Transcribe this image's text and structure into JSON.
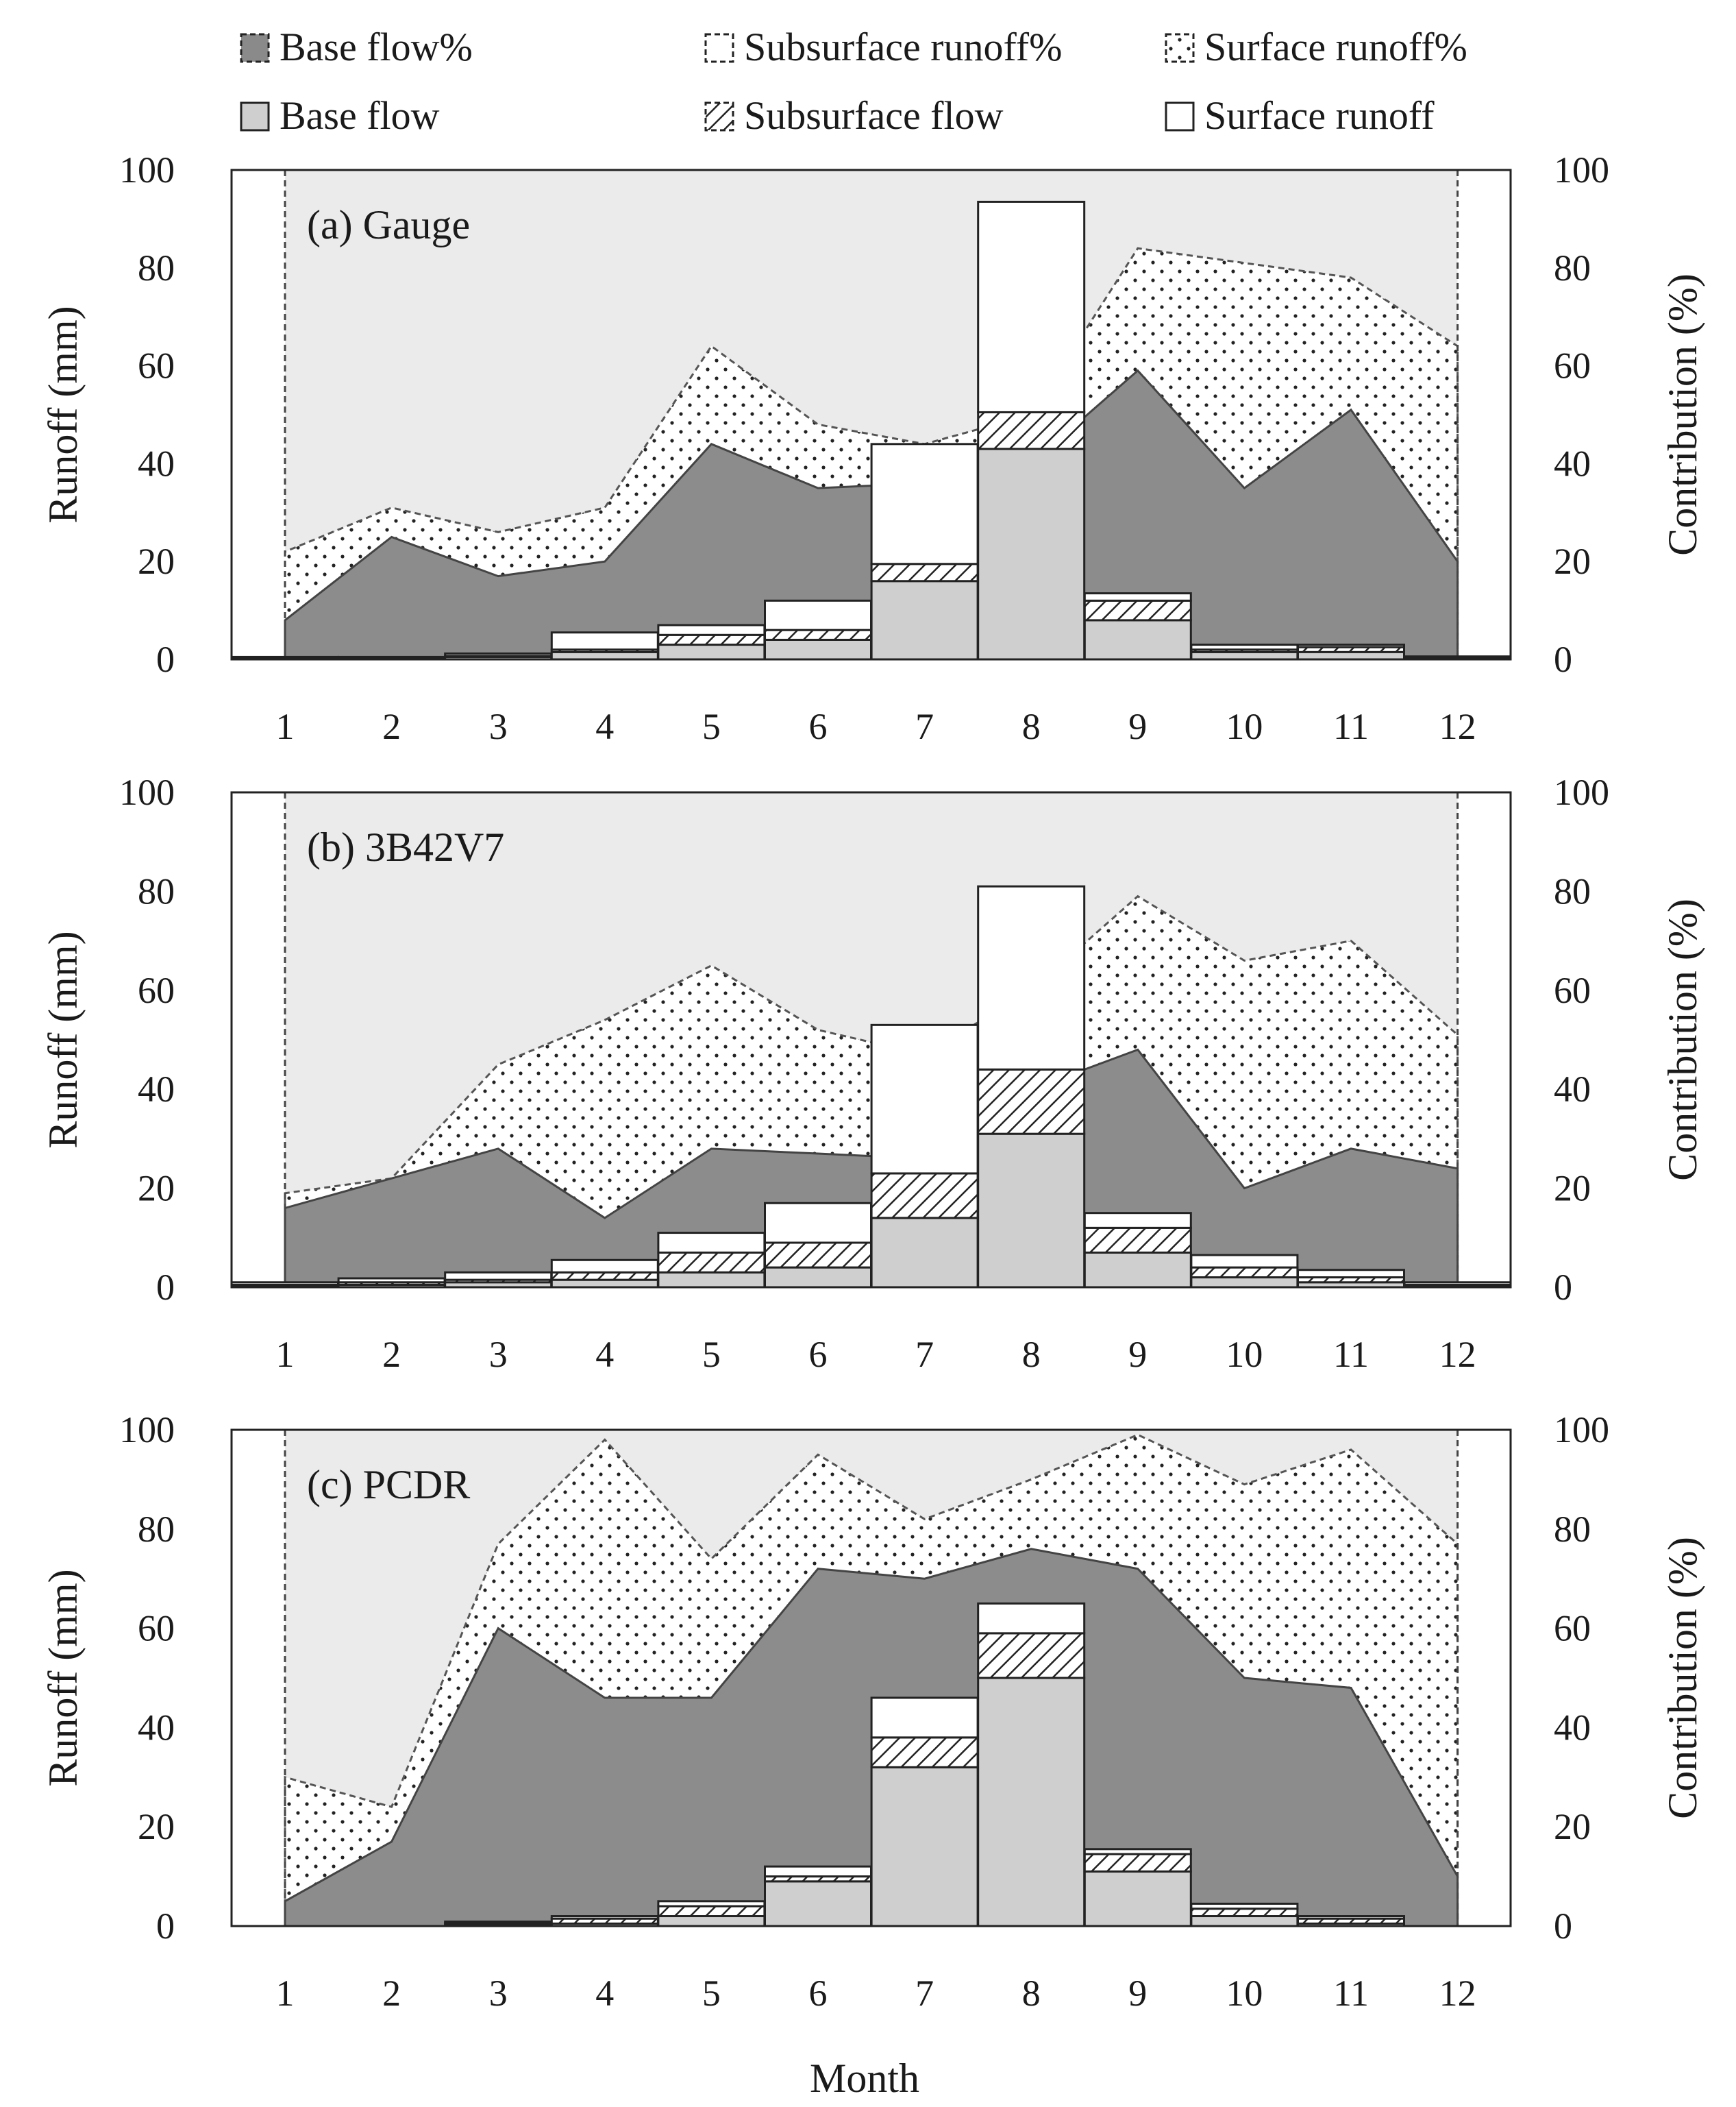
{
  "chart_data": {
    "type": "bar",
    "description_kind": "stacked bars (runoff components, left axis) with stacked area contribution percentages (right axis), three panels",
    "xlabel": "Month",
    "ylabel_left": "Runoff (mm)",
    "ylabel_right": "Contribution (%)",
    "categories": [
      "1",
      "2",
      "3",
      "4",
      "5",
      "6",
      "7",
      "8",
      "9",
      "10",
      "11",
      "12"
    ],
    "y_ticks": [
      "0",
      "20",
      "40",
      "60",
      "80",
      "100"
    ],
    "ylim": [
      0,
      100
    ],
    "y2lim": [
      0,
      100
    ],
    "legend": [
      {
        "key": "bf_pct",
        "label": "Base flow%"
      },
      {
        "key": "ssr_pct",
        "label": "Subsurface runoff%"
      },
      {
        "key": "sr_pct",
        "label": "Surface runoff%"
      },
      {
        "key": "bf",
        "label": "Base flow"
      },
      {
        "key": "ssf",
        "label": "Subsurface flow"
      },
      {
        "key": "sr",
        "label": "Surface runoff"
      }
    ],
    "panels": [
      {
        "title": "(a) Gauge",
        "base_flow": [
          0.2,
          0.3,
          0.5,
          1.5,
          3,
          4,
          16,
          43,
          8,
          1.5,
          1.5,
          0.3
        ],
        "subsurface_flow": [
          0.1,
          0.1,
          0.2,
          0.5,
          2,
          2,
          3.5,
          7.5,
          4,
          0.5,
          1,
          0.1
        ],
        "surface_runoff": [
          0.2,
          0.1,
          0.5,
          3.5,
          2,
          6,
          24.5,
          43,
          1.5,
          1.0,
          0.5,
          0.2
        ],
        "base_flow_pct": [
          8,
          25,
          17,
          20,
          44,
          35,
          36,
          40,
          59,
          35,
          51,
          20
        ],
        "cumulative_pct": [
          22,
          31,
          26,
          31,
          64,
          48,
          44,
          50,
          84,
          81,
          78,
          64
        ]
      },
      {
        "title": "(b) 3B42V7",
        "base_flow": [
          0.3,
          0.5,
          1,
          1.5,
          3,
          4,
          14,
          31,
          7,
          2,
          1,
          0.3
        ],
        "subsurface_flow": [
          0.2,
          0.5,
          0.5,
          1.5,
          4,
          5,
          9,
          13,
          5,
          2,
          1,
          0.2
        ],
        "surface_runoff": [
          0.5,
          0.8,
          1.5,
          2.5,
          4,
          8,
          30,
          37,
          3,
          2.5,
          1.5,
          0.5
        ],
        "base_flow_pct": [
          16,
          22,
          28,
          14,
          28,
          27,
          26,
          40,
          48,
          20,
          28,
          24
        ],
        "cumulative_pct": [
          19,
          22,
          45,
          54,
          65,
          52,
          47,
          60,
          79,
          66,
          70,
          51
        ]
      },
      {
        "title": "(c) PCDR",
        "base_flow": [
          0,
          0,
          0.3,
          0.5,
          2,
          9,
          32,
          50,
          11,
          2,
          0.5,
          0
        ],
        "subsurface_flow": [
          0,
          0,
          0.3,
          1,
          2,
          1,
          6,
          9,
          3.5,
          1.5,
          1,
          0
        ],
        "surface_runoff": [
          0,
          0,
          0.3,
          0.5,
          1,
          2,
          8,
          6,
          1,
          1,
          0.5,
          0
        ],
        "base_flow_pct": [
          5,
          17,
          60,
          46,
          46,
          72,
          70,
          76,
          72,
          50,
          48,
          10
        ],
        "cumulative_pct": [
          30,
          24,
          77,
          98,
          74,
          95,
          82,
          90,
          99,
          89,
          96,
          77
        ]
      }
    ]
  }
}
